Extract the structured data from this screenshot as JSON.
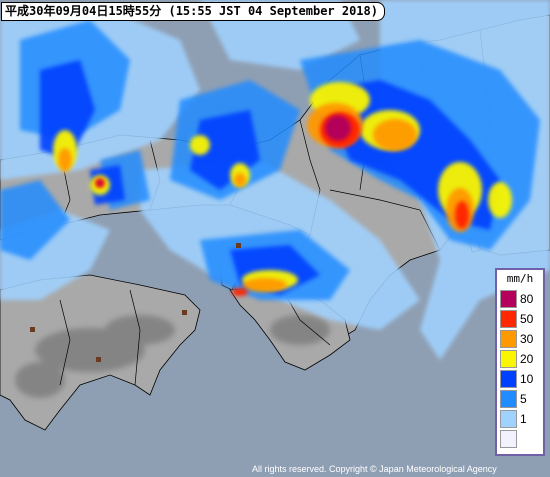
{
  "title_text": "平成30年09月04日15時55分 (15:55 JST 04 September 2018)",
  "legend": {
    "unit": "mm/h",
    "items": [
      {
        "value": "80",
        "color": "#b4005a"
      },
      {
        "value": "50",
        "color": "#ff2800"
      },
      {
        "value": "30",
        "color": "#ff9900"
      },
      {
        "value": "20",
        "color": "#faf500"
      },
      {
        "value": "10",
        "color": "#0041ff"
      },
      {
        "value": "5",
        "color": "#218cff"
      },
      {
        "value": "1",
        "color": "#a0d2ff"
      },
      {
        "value": "",
        "color": "#f2f2ff"
      }
    ]
  },
  "copyright": "All rights reserved. Copyright © Japan Meteorological Agency",
  "colors": {
    "sea": "#8f9fb3",
    "land": "#a8a8a8",
    "mountain": "#808080",
    "boundary": "#000000"
  }
}
